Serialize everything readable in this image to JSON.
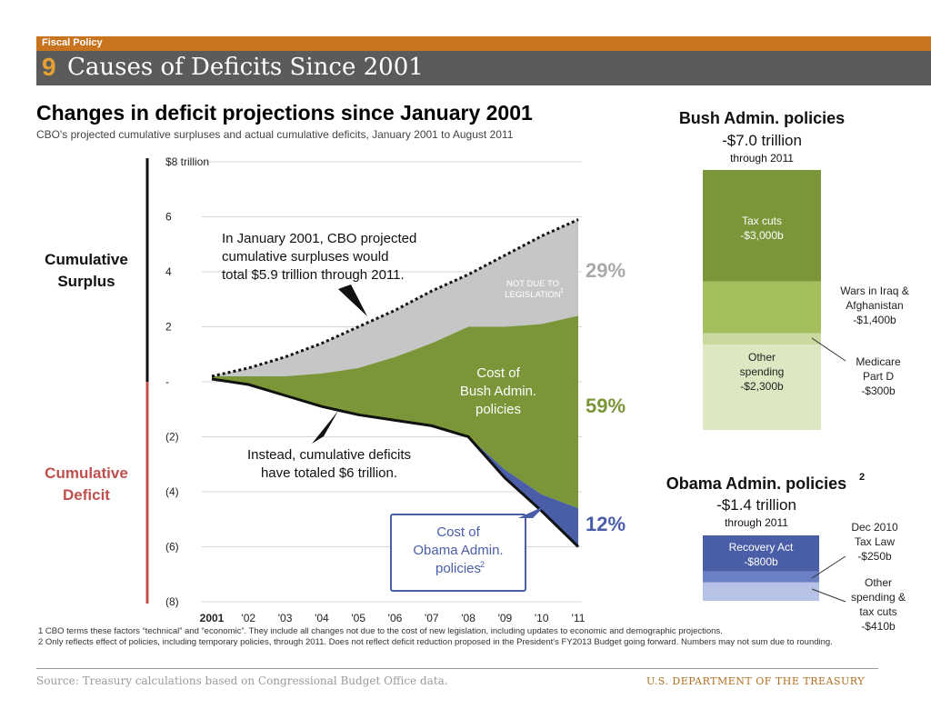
{
  "header": {
    "section": "Fiscal Policy",
    "number": "9",
    "title": "Causes of Deficits Since 2001"
  },
  "main_chart": {
    "title": "Changes in deficit projections since January 2001",
    "subtitle": "CBO's projected cumulative surpluses and actual cumulative deficits, January 2001 to August 2011",
    "side_labels": {
      "surplus": [
        "Cumulative",
        "Surplus"
      ],
      "deficit": [
        "Cumulative",
        "Deficit"
      ]
    },
    "annotation_projection": [
      "In January 2001, CBO projected",
      "cumulative surpluses would",
      "total $5.9 trillion through 2011."
    ],
    "annotation_deficit": [
      "Instead, cumulative deficits",
      "have totaled $6 trillion."
    ],
    "not_due_label": [
      "NOT DUE TO",
      "LEGISLATION"
    ],
    "bush_area_label": [
      "Cost of",
      "Bush Admin.",
      "policies"
    ],
    "obama_callout": [
      "Cost of",
      "Obama Admin.",
      "policies"
    ],
    "colors": {
      "projection": "#c6c6c6",
      "bush": "#7a9638",
      "obama": "#4a5ea8",
      "surplus_axis": "#111111",
      "deficit_axis": "#c0504d"
    }
  },
  "chart_data": [
    {
      "type": "area",
      "title": "Changes in deficit projections since January 2001",
      "ylabel": "$8 trillion",
      "ylim": [
        -8,
        8
      ],
      "y_ticks": [
        8,
        6,
        4,
        2,
        0,
        -2,
        -4,
        -6,
        -8
      ],
      "y_tick_labels": [
        "$8 trillion",
        "6",
        "4",
        "2",
        "-",
        "(2)",
        "(4)",
        "(6)",
        "(8)"
      ],
      "x": [
        "2001",
        "'02",
        "'03",
        "'04",
        "'05",
        "'06",
        "'07",
        "'08",
        "'09",
        "'10",
        "'11"
      ],
      "grid": true,
      "series": [
        {
          "name": "CBO projected cumulative surpluses",
          "values": [
            0.2,
            0.5,
            0.9,
            1.4,
            2.0,
            2.6,
            3.3,
            3.9,
            4.6,
            5.3,
            5.9
          ]
        },
        {
          "name": "Cost of Bush Admin. policies",
          "values": [
            0.2,
            0.2,
            0.2,
            0.3,
            0.5,
            0.9,
            1.4,
            2.0,
            2.0,
            2.1,
            2.4
          ]
        },
        {
          "name": "Cost of Obama Admin. policies",
          "values": [
            0.1,
            -0.1,
            -0.5,
            -0.9,
            -1.2,
            -1.4,
            -1.6,
            -2.0,
            -3.2,
            -4.1,
            -4.6
          ]
        },
        {
          "name": "Actual cumulative deficits",
          "values": [
            0.1,
            -0.1,
            -0.5,
            -0.9,
            -1.2,
            -1.4,
            -1.6,
            -2.0,
            -3.5,
            -4.7,
            -6.0
          ]
        }
      ],
      "shares": [
        {
          "label": "29%",
          "color": "#a9a9a9"
        },
        {
          "label": "59%",
          "color": "#7a9638"
        },
        {
          "label": "12%",
          "color": "#4a5ea8"
        }
      ]
    },
    {
      "type": "bar",
      "title": "Bush Admin. policies",
      "total": "-$7.0 trillion",
      "period": "through 2011",
      "categories": [
        "Tax cuts",
        "Wars in Iraq & Afghanistan",
        "Medicare Part D",
        "Other spending"
      ],
      "values": [
        -3000,
        -1400,
        -300,
        -2300
      ],
      "value_labels": [
        "-$3,000b",
        "-$1,400b",
        "-$300b",
        "-$2,300b"
      ],
      "colors": [
        "#7a9638",
        "#a3c05c",
        "#c9d9a0",
        "#dde7c2"
      ]
    },
    {
      "type": "bar",
      "title": "Obama Admin. policies",
      "title_sup": "2",
      "total": "-$1.4 trillion",
      "period": "through 2011",
      "categories": [
        "Recovery Act",
        "Dec 2010 Tax Law",
        "Other spending & tax cuts"
      ],
      "values": [
        -800,
        -250,
        -410
      ],
      "value_labels": [
        "-$800b",
        "-$250b",
        "-$410b"
      ],
      "colors": [
        "#4a5ea8",
        "#6a7fc4",
        "#b7c3e6"
      ]
    }
  ],
  "bush_side_labels": {
    "wars": [
      "Wars in Iraq  &",
      "Afghanistan",
      "-$1,400b"
    ],
    "medicare": [
      "Medicare",
      "Part D",
      "-$300b"
    ]
  },
  "obama_side_labels": {
    "dec2010": [
      "Dec 2010",
      "Tax Law",
      "-$250b"
    ],
    "other": [
      "Other",
      "spending &",
      "tax cuts",
      "-$410b"
    ]
  },
  "footnotes": [
    "1 CBO terms these factors “technical” and “economic”. They include all changes not due to the cost of new legislation, including updates to economic and demographic projections.",
    "2 Only reflects effect of policies, including temporary policies, through 2011. Does not reflect deficit reduction proposed in the President's FY2013 Budget going forward. Numbers may not sum due to rounding."
  ],
  "footer": {
    "source": "Source: Treasury calculations based on Congressional Budget Office data.",
    "agency": "U.S. DEPARTMENT OF THE TREASURY"
  }
}
